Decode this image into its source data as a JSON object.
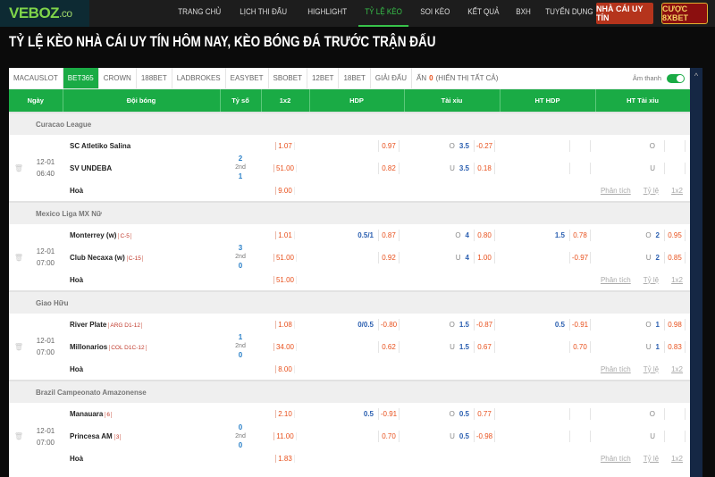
{
  "brand": {
    "logo_main": "VEBOZ",
    "logo_suffix": ".co"
  },
  "nav": [
    "TRANG CHỦ",
    "LỊCH THI ĐẤU",
    "HIGHLIGHT",
    "TỶ LỆ KÈO",
    "SOI KÈO",
    "KẾT QUẢ",
    "BXH",
    "TUYỂN DỤNG"
  ],
  "nav_active": "TỶ LỆ KÈO",
  "buttons": {
    "trusted": "NHÀ CÁI UY TÍN",
    "bet8x": "CƯỢC 8XBET"
  },
  "page_title": "TỶ LỆ KÈO NHÀ CÁI UY TÍN HÔM NAY, KÈO BÓNG ĐÁ TRƯỚC TRẬN ĐẤU",
  "tabs": [
    "MACAUSLOT",
    "BET365",
    "CROWN",
    "188BET",
    "LADBROKES",
    "EASYBET",
    "SBOBET",
    "12BET",
    "18BET",
    "GIẢI ĐẤU"
  ],
  "tab_active": "BET365",
  "hidden": {
    "label": "ẨN",
    "count": "0",
    "show_all": "(HIỂN THỊ TẤT CẢ)"
  },
  "sound": {
    "label": "Âm thanh",
    "on": true
  },
  "columns": [
    "Ngày",
    "Đội bóng",
    "Tỷ số",
    "1x2",
    "HDP",
    "Tài xỉu",
    "HT HDP",
    "HT Tài xỉu"
  ],
  "footer_links": [
    "Phân tích",
    "Tỷ lệ",
    "1x2"
  ],
  "draw_label": "Hoà",
  "colors": {
    "accent": "#1aab45",
    "odds": "#e8501c",
    "line": "#2b5fb0"
  },
  "leagues": [
    {
      "name": "Curacao League",
      "date": "12-01",
      "time": "06:40",
      "score_home": "2",
      "period": "2nd",
      "score_away": "1",
      "rows": [
        {
          "team": "SC Atletiko Salina",
          "tag": "",
          "x12": "1.07",
          "hdp_line": "",
          "hdp_odds": "0.97",
          "tx_side": "O",
          "tx_line": "3.5",
          "tx_odds": "-0.27",
          "hthdp_line": "",
          "hthdp_odds": "",
          "httx_side": "O",
          "httx_line": "",
          "httx_odds": ""
        },
        {
          "team": "SV UNDEBA",
          "tag": "",
          "x12": "51.00",
          "hdp_line": "",
          "hdp_odds": "0.82",
          "tx_side": "U",
          "tx_line": "3.5",
          "tx_odds": "0.18",
          "hthdp_line": "",
          "hthdp_odds": "",
          "httx_side": "U",
          "httx_line": "",
          "httx_odds": ""
        }
      ],
      "draw_x12": "9.00"
    },
    {
      "name": "Mexico Liga MX Nữ",
      "date": "12-01",
      "time": "07:00",
      "score_home": "3",
      "period": "2nd",
      "score_away": "0",
      "rows": [
        {
          "team": "Monterrey (w)",
          "tag": "C-5",
          "x12": "1.01",
          "hdp_line": "0.5/1",
          "hdp_odds": "0.87",
          "tx_side": "O",
          "tx_line": "4",
          "tx_odds": "0.80",
          "hthdp_line": "1.5",
          "hthdp_odds": "0.78",
          "httx_side": "O",
          "httx_line": "2",
          "httx_odds": "0.95"
        },
        {
          "team": "Club Necaxa (w)",
          "tag": "C-15",
          "x12": "51.00",
          "hdp_line": "",
          "hdp_odds": "0.92",
          "tx_side": "U",
          "tx_line": "4",
          "tx_odds": "1.00",
          "hthdp_line": "",
          "hthdp_odds": "-0.97",
          "httx_side": "U",
          "httx_line": "2",
          "httx_odds": "0.85"
        }
      ],
      "draw_x12": "51.00"
    },
    {
      "name": "Giao Hữu",
      "date": "12-01",
      "time": "07:00",
      "score_home": "1",
      "period": "2nd",
      "score_away": "0",
      "rows": [
        {
          "team": "River Plate",
          "tag": "ARG D1-12",
          "x12": "1.08",
          "hdp_line": "0/0.5",
          "hdp_odds": "-0.80",
          "tx_side": "O",
          "tx_line": "1.5",
          "tx_odds": "-0.87",
          "hthdp_line": "0.5",
          "hthdp_odds": "-0.91",
          "httx_side": "O",
          "httx_line": "1",
          "httx_odds": "0.98"
        },
        {
          "team": "Millonarios",
          "tag": "COL D1C-12",
          "x12": "34.00",
          "hdp_line": "",
          "hdp_odds": "0.62",
          "tx_side": "U",
          "tx_line": "1.5",
          "tx_odds": "0.67",
          "hthdp_line": "",
          "hthdp_odds": "0.70",
          "httx_side": "U",
          "httx_line": "1",
          "httx_odds": "0.83"
        }
      ],
      "draw_x12": "8.00"
    },
    {
      "name": "Brazil Campeonato Amazonense",
      "date": "12-01",
      "time": "07:00",
      "score_home": "0",
      "period": "2nd",
      "score_away": "0",
      "rows": [
        {
          "team": "Manauara",
          "tag": "6",
          "x12": "2.10",
          "hdp_line": "0.5",
          "hdp_odds": "-0.91",
          "tx_side": "O",
          "tx_line": "0.5",
          "tx_odds": "0.77",
          "hthdp_line": "",
          "hthdp_odds": "",
          "httx_side": "O",
          "httx_line": "",
          "httx_odds": ""
        },
        {
          "team": "Princesa AM",
          "tag": "3",
          "x12": "11.00",
          "hdp_line": "",
          "hdp_odds": "0.70",
          "tx_side": "U",
          "tx_line": "0.5",
          "tx_odds": "-0.98",
          "hthdp_line": "",
          "hthdp_odds": "",
          "httx_side": "U",
          "httx_line": "",
          "httx_odds": ""
        }
      ],
      "draw_x12": "1.83"
    }
  ]
}
